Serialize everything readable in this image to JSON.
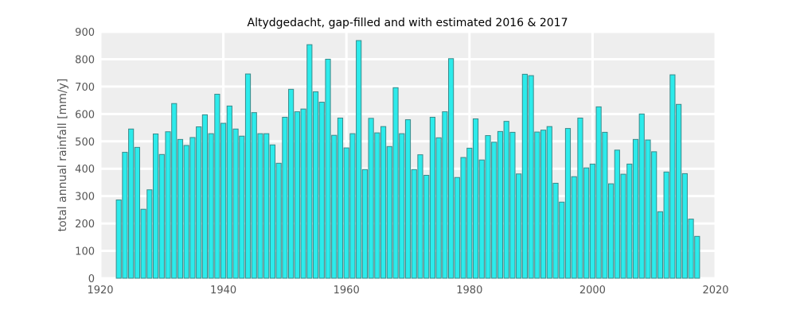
{
  "colors": {
    "background": "#ffffff",
    "plot_background": "#eeeeee",
    "grid": "#ffffff",
    "bar_fill": "#2cebeb",
    "bar_edge": "#3a8a8a"
  },
  "chart_data": {
    "type": "bar",
    "title": "Altydgedacht, gap-filled and with estimated 2016 & 2017",
    "xlabel": "",
    "ylabel": "total annual rainfall [mm/y]",
    "xlim": [
      1920,
      2020
    ],
    "ylim": [
      0,
      900
    ],
    "xticks": [
      1920,
      1940,
      1960,
      1980,
      2000,
      2020
    ],
    "yticks": [
      0,
      100,
      200,
      300,
      400,
      500,
      600,
      700,
      800,
      900
    ],
    "grid": true,
    "x": [
      1923,
      1924,
      1925,
      1926,
      1927,
      1928,
      1929,
      1930,
      1931,
      1932,
      1933,
      1934,
      1935,
      1936,
      1937,
      1938,
      1939,
      1940,
      1941,
      1942,
      1943,
      1944,
      1945,
      1946,
      1947,
      1948,
      1949,
      1950,
      1951,
      1952,
      1953,
      1954,
      1955,
      1956,
      1957,
      1958,
      1959,
      1960,
      1961,
      1962,
      1963,
      1964,
      1965,
      1966,
      1967,
      1968,
      1969,
      1970,
      1971,
      1972,
      1973,
      1974,
      1975,
      1976,
      1977,
      1978,
      1979,
      1980,
      1981,
      1982,
      1983,
      1984,
      1985,
      1986,
      1987,
      1988,
      1989,
      1990,
      1991,
      1992,
      1993,
      1994,
      1995,
      1996,
      1997,
      1998,
      1999,
      2000,
      2001,
      2002,
      2003,
      2004,
      2005,
      2006,
      2007,
      2008,
      2009,
      2010,
      2011,
      2012,
      2013,
      2014,
      2015,
      2016,
      2017
    ],
    "values": [
      286,
      460,
      545,
      478,
      252,
      323,
      527,
      452,
      535,
      638,
      507,
      485,
      514,
      553,
      597,
      528,
      672,
      566,
      629,
      545,
      519,
      746,
      605,
      528,
      528,
      487,
      420,
      588,
      690,
      608,
      618,
      853,
      681,
      643,
      800,
      522,
      585,
      476,
      528,
      868,
      397,
      584,
      531,
      554,
      481,
      696,
      528,
      579,
      397,
      451,
      376,
      588,
      513,
      608,
      802,
      368,
      441,
      475,
      582,
      432,
      521,
      497,
      536,
      573,
      533,
      381,
      745,
      740,
      534,
      541,
      554,
      347,
      278,
      547,
      371,
      585,
      403,
      417,
      626,
      533,
      345,
      468,
      380,
      417,
      507,
      600,
      505,
      462,
      243,
      388,
      743,
      635,
      382,
      216,
      153
    ]
  }
}
